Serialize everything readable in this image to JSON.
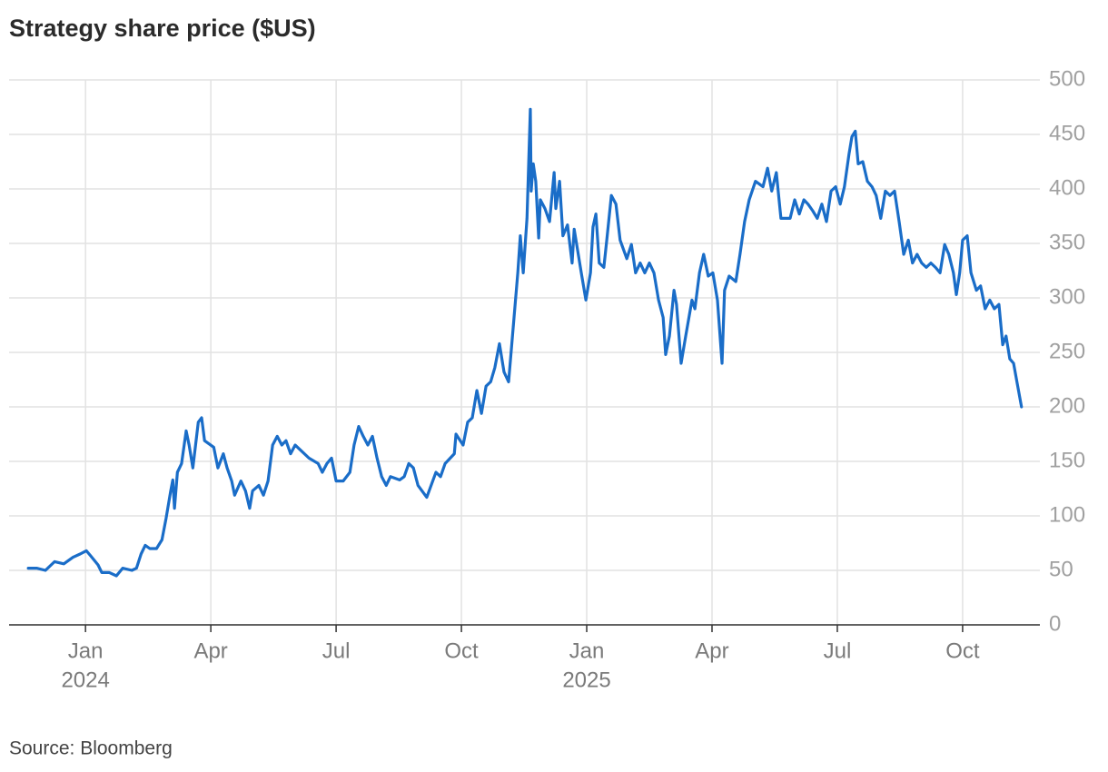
{
  "chart_data": {
    "type": "line",
    "title": "Strategy share price ($US)",
    "source": "Source: Bloomberg",
    "x": [
      -1.37,
      -1.17,
      -0.96,
      -0.74,
      -0.52,
      -0.3,
      -0.13,
      0.02,
      0.13,
      0.3,
      0.39,
      0.57,
      0.74,
      0.89,
      1.11,
      1.22,
      1.33,
      1.43,
      1.54,
      1.7,
      1.83,
      1.93,
      2.04,
      2.09,
      2.13,
      2.2,
      2.3,
      2.41,
      2.48,
      2.57,
      2.7,
      2.78,
      2.85,
      3.07,
      3.17,
      3.3,
      3.39,
      3.5,
      3.57,
      3.72,
      3.83,
      3.93,
      4.0,
      4.15,
      4.26,
      4.37,
      4.48,
      4.59,
      4.7,
      4.8,
      4.91,
      5.02,
      5.13,
      5.35,
      5.57,
      5.67,
      5.78,
      5.89,
      6.0,
      6.17,
      6.33,
      6.43,
      6.54,
      6.65,
      6.76,
      6.87,
      6.98,
      7.09,
      7.2,
      7.3,
      7.52,
      7.63,
      7.74,
      7.85,
      7.96,
      8.17,
      8.39,
      8.5,
      8.61,
      8.83,
      8.87,
      9.04,
      9.15,
      9.26,
      9.37,
      9.48,
      9.59,
      9.7,
      9.8,
      9.91,
      10.02,
      10.13,
      10.24,
      10.35,
      10.41,
      10.48,
      10.57,
      10.65,
      10.67,
      10.72,
      10.78,
      10.85,
      10.89,
      11.0,
      11.11,
      11.22,
      11.26,
      11.35,
      11.43,
      11.54,
      11.65,
      11.7,
      11.76,
      11.87,
      11.98,
      12.09,
      12.15,
      12.22,
      12.3,
      12.41,
      12.48,
      12.59,
      12.7,
      12.8,
      12.96,
      13.07,
      13.17,
      13.28,
      13.39,
      13.5,
      13.61,
      13.72,
      13.83,
      13.89,
      13.98,
      14.09,
      14.15,
      14.26,
      14.37,
      14.52,
      14.59,
      14.7,
      14.8,
      14.91,
      15.02,
      15.13,
      15.24,
      15.3,
      15.41,
      15.57,
      15.67,
      15.78,
      15.89,
      16.04,
      16.22,
      16.33,
      16.43,
      16.54,
      16.65,
      16.87,
      16.98,
      17.09,
      17.2,
      17.3,
      17.41,
      17.52,
      17.63,
      17.74,
      17.85,
      17.96,
      18.07,
      18.17,
      18.28,
      18.35,
      18.43,
      18.5,
      18.61,
      18.72,
      18.83,
      18.93,
      19.04,
      19.15,
      19.26,
      19.37,
      19.48,
      19.59,
      19.7,
      19.8,
      19.91,
      20.02,
      20.13,
      20.24,
      20.35,
      20.46,
      20.57,
      20.67,
      20.78,
      20.85,
      20.93,
      21.0,
      21.11,
      21.2,
      21.33,
      21.43,
      21.54,
      21.65,
      21.76,
      21.87,
      21.96,
      22.04,
      22.13,
      22.22,
      22.3,
      22.41
    ],
    "series": [
      {
        "name": "Strategy",
        "color": "#1a6dc8",
        "values": [
          52,
          52,
          50,
          58,
          56,
          62,
          65,
          68,
          63,
          55,
          48,
          48,
          45,
          52,
          50,
          52,
          65,
          73,
          70,
          70,
          78,
          98,
          123,
          133,
          107,
          140,
          148,
          178,
          165,
          144,
          186,
          190,
          169,
          163,
          144,
          157,
          144,
          132,
          119,
          132,
          123,
          107,
          123,
          128,
          119,
          132,
          165,
          173,
          165,
          169,
          157,
          165,
          161,
          153,
          148,
          140,
          148,
          153,
          132,
          132,
          140,
          165,
          182,
          173,
          165,
          173,
          153,
          136,
          128,
          136,
          133,
          136,
          148,
          144,
          128,
          117,
          140,
          136,
          148,
          157,
          175,
          165,
          186,
          190,
          215,
          194,
          219,
          223,
          236,
          258,
          232,
          223,
          273,
          323,
          357,
          323,
          373,
          473,
          398,
          423,
          407,
          355,
          390,
          382,
          370,
          415,
          382,
          407,
          357,
          367,
          332,
          363,
          349,
          323,
          298,
          323,
          365,
          377,
          332,
          328,
          353,
          394,
          386,
          353,
          336,
          349,
          323,
          332,
          323,
          332,
          323,
          298,
          282,
          248,
          265,
          307,
          294,
          240,
          265,
          298,
          290,
          323,
          340,
          320,
          323,
          298,
          240,
          307,
          320,
          315,
          340,
          370,
          390,
          407,
          402,
          419,
          398,
          415,
          373,
          373,
          390,
          377,
          390,
          386,
          380,
          373,
          386,
          370,
          398,
          402,
          386,
          402,
          432,
          448,
          453,
          423,
          425,
          407,
          402,
          394,
          373,
          398,
          394,
          398,
          370,
          340,
          353,
          332,
          340,
          332,
          328,
          332,
          328,
          323,
          349,
          340,
          323,
          303,
          323,
          353,
          357,
          323,
          307,
          311,
          290,
          298,
          290,
          294,
          257,
          265,
          244,
          240,
          223,
          200
        ]
      }
    ],
    "xlim": [
      -1.83,
      22.85
    ],
    "xticks": [
      {
        "value": 0,
        "label": "Jan"
      },
      {
        "value": 3,
        "label": "Apr"
      },
      {
        "value": 6,
        "label": "Jul"
      },
      {
        "value": 9,
        "label": "Oct"
      },
      {
        "value": 12,
        "label": "Jan"
      },
      {
        "value": 15,
        "label": "Apr"
      },
      {
        "value": 18,
        "label": "Jul"
      },
      {
        "value": 21,
        "label": "Oct"
      }
    ],
    "xtick_years": [
      {
        "value": 0,
        "label": "2024"
      },
      {
        "value": 12,
        "label": "2025"
      }
    ],
    "ylim": [
      0,
      500
    ],
    "yticks": [
      0,
      50,
      100,
      150,
      200,
      250,
      300,
      350,
      400,
      450,
      500
    ],
    "grid": true
  }
}
